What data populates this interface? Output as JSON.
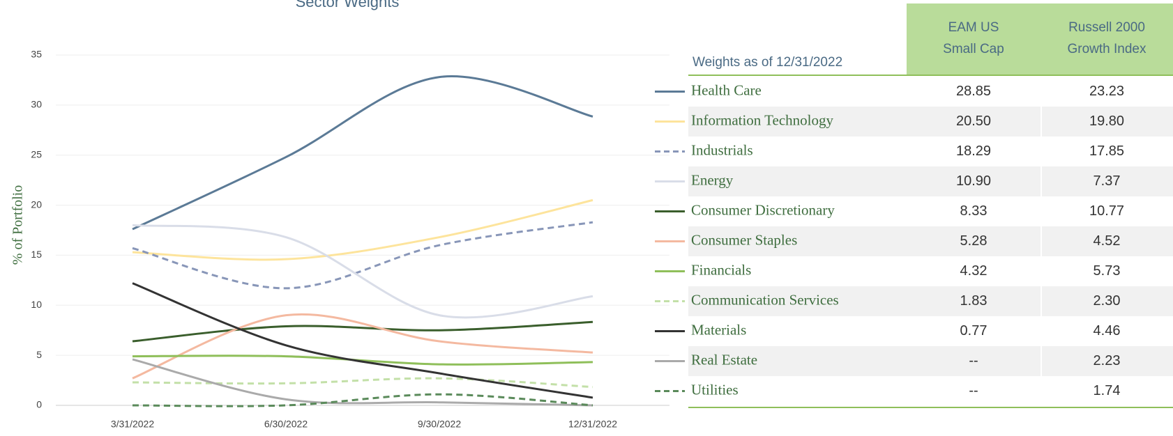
{
  "chart_data": {
    "type": "line",
    "title": "Sector Weights",
    "y_label": "% of Portfolio",
    "categories": [
      "3/31/2022",
      "6/30/2022",
      "9/30/2022",
      "12/31/2022"
    ],
    "ylim": [
      0,
      35
    ],
    "yticks": [
      0,
      5,
      10,
      15,
      20,
      25,
      30,
      35
    ],
    "grid": true,
    "series": [
      {
        "name": "Health Care",
        "color": "#5b7a96",
        "dashed": false,
        "values": [
          17.6,
          24.8,
          32.8,
          28.85
        ]
      },
      {
        "name": "Information Technology",
        "color": "#fde49c",
        "dashed": false,
        "values": [
          15.3,
          14.6,
          16.8,
          20.5
        ]
      },
      {
        "name": "Industrials",
        "color": "#8896b8",
        "dashed": true,
        "values": [
          15.7,
          11.7,
          16.0,
          18.29
        ]
      },
      {
        "name": "Energy",
        "color": "#d9dde8",
        "dashed": false,
        "values": [
          18.0,
          16.8,
          9.0,
          10.9
        ]
      },
      {
        "name": "Consumer Discretionary",
        "color": "#3a5e2c",
        "dashed": false,
        "values": [
          6.4,
          7.9,
          7.5,
          8.33
        ]
      },
      {
        "name": "Consumer Staples",
        "color": "#f4b9a0",
        "dashed": false,
        "values": [
          2.7,
          9.0,
          6.4,
          5.28
        ]
      },
      {
        "name": "Financials",
        "color": "#8fbf5a",
        "dashed": false,
        "values": [
          4.9,
          4.9,
          4.1,
          4.32
        ]
      },
      {
        "name": "Communication Services",
        "color": "#c3e0a8",
        "dashed": true,
        "values": [
          2.3,
          2.2,
          2.7,
          1.83
        ]
      },
      {
        "name": "Materials",
        "color": "#333333",
        "dashed": false,
        "values": [
          12.2,
          6.0,
          3.2,
          0.77
        ]
      },
      {
        "name": "Real Estate",
        "color": "#aaaaaa",
        "dashed": false,
        "values": [
          4.6,
          0.6,
          0.3,
          0
        ]
      },
      {
        "name": "Utilities",
        "color": "#5a8a5a",
        "dashed": true,
        "values": [
          0,
          0,
          1.1,
          0
        ]
      }
    ]
  },
  "table": {
    "caption": "Weights as of 12/31/2022",
    "columns": [
      [
        "EAM US",
        "Small Cap"
      ],
      [
        "Russell 2000",
        "Growth Index"
      ]
    ],
    "rows": [
      [
        "28.85",
        "23.23"
      ],
      [
        "20.50",
        "19.80"
      ],
      [
        "18.29",
        "17.85"
      ],
      [
        "10.90",
        "7.37"
      ],
      [
        "8.33",
        "10.77"
      ],
      [
        "5.28",
        "4.52"
      ],
      [
        "4.32",
        "5.73"
      ],
      [
        "1.83",
        "2.30"
      ],
      [
        "0.77",
        "4.46"
      ],
      [
        "--",
        "2.23"
      ],
      [
        "--",
        "1.74"
      ]
    ]
  }
}
